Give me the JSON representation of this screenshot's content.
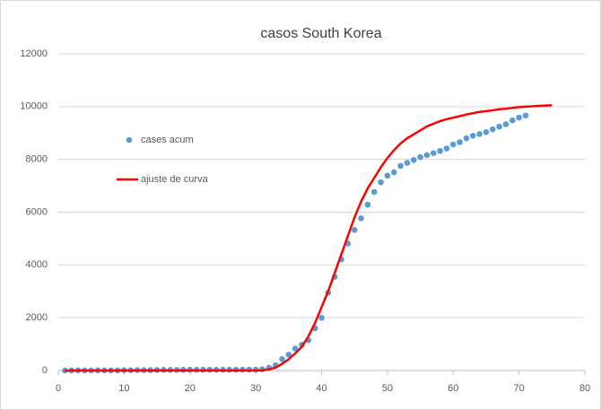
{
  "chart_data": {
    "type": "scatter",
    "title": "casos South Korea",
    "xlim": [
      0,
      80
    ],
    "ylim": [
      0,
      12000
    ],
    "xticks": [
      0,
      10,
      20,
      30,
      40,
      50,
      60,
      70,
      80
    ],
    "yticks": [
      0,
      2000,
      4000,
      6000,
      8000,
      10000,
      12000
    ],
    "grid": true,
    "legend": "left",
    "series": [
      {
        "name": "cases acum",
        "type": "scatter",
        "color": "#5b9bd5",
        "x": [
          1,
          2,
          3,
          4,
          5,
          6,
          7,
          8,
          9,
          10,
          11,
          12,
          13,
          14,
          15,
          16,
          17,
          18,
          19,
          20,
          21,
          22,
          23,
          24,
          25,
          26,
          27,
          28,
          29,
          30,
          31,
          32,
          33,
          34,
          35,
          36,
          37,
          38,
          39,
          40,
          41,
          42,
          43,
          44,
          45,
          46,
          47,
          48,
          49,
          50,
          51,
          52,
          53,
          54,
          55,
          56,
          57,
          58,
          59,
          60,
          61,
          62,
          63,
          64,
          65,
          66,
          67,
          68,
          69,
          70,
          71
        ],
        "values": [
          1,
          1,
          2,
          2,
          3,
          4,
          4,
          4,
          4,
          11,
          12,
          15,
          15,
          16,
          19,
          23,
          24,
          24,
          25,
          27,
          28,
          28,
          28,
          28,
          28,
          29,
          30,
          31,
          31,
          31,
          46,
          104,
          204,
          433,
          602,
          833,
          977,
          1150,
          1600,
          2000,
          2950,
          3550,
          4212,
          4812,
          5328,
          5766,
          6284,
          6767,
          7134,
          7382,
          7513,
          7755,
          7869,
          7979,
          8086,
          8162,
          8236,
          8320,
          8413,
          8565,
          8652,
          8799,
          8897,
          8961,
          9037,
          9137,
          9241,
          9332,
          9478,
          9583,
          9661
        ]
      },
      {
        "name": "ajuste de curva",
        "type": "line",
        "color": "#ff0000",
        "x": [
          1,
          5,
          10,
          15,
          20,
          25,
          30,
          31,
          32,
          33,
          34,
          35,
          36,
          37,
          38,
          39,
          40,
          41,
          42,
          43,
          44,
          45,
          46,
          47,
          48,
          49,
          50,
          51,
          52,
          53,
          54,
          55,
          56,
          57,
          58,
          59,
          60,
          61,
          62,
          63,
          64,
          65,
          66,
          67,
          68,
          69,
          70,
          71,
          72,
          73,
          74,
          75
        ],
        "values": [
          0,
          0,
          0,
          0,
          0,
          0,
          0,
          10,
          40,
          110,
          250,
          430,
          650,
          900,
          1300,
          1800,
          2400,
          3000,
          3700,
          4400,
          5100,
          5800,
          6400,
          6900,
          7300,
          7700,
          8050,
          8350,
          8600,
          8800,
          8950,
          9100,
          9250,
          9350,
          9450,
          9520,
          9580,
          9640,
          9700,
          9750,
          9800,
          9830,
          9860,
          9900,
          9920,
          9950,
          9980,
          10000,
          10010,
          10030,
          10040,
          10050
        ]
      }
    ]
  }
}
